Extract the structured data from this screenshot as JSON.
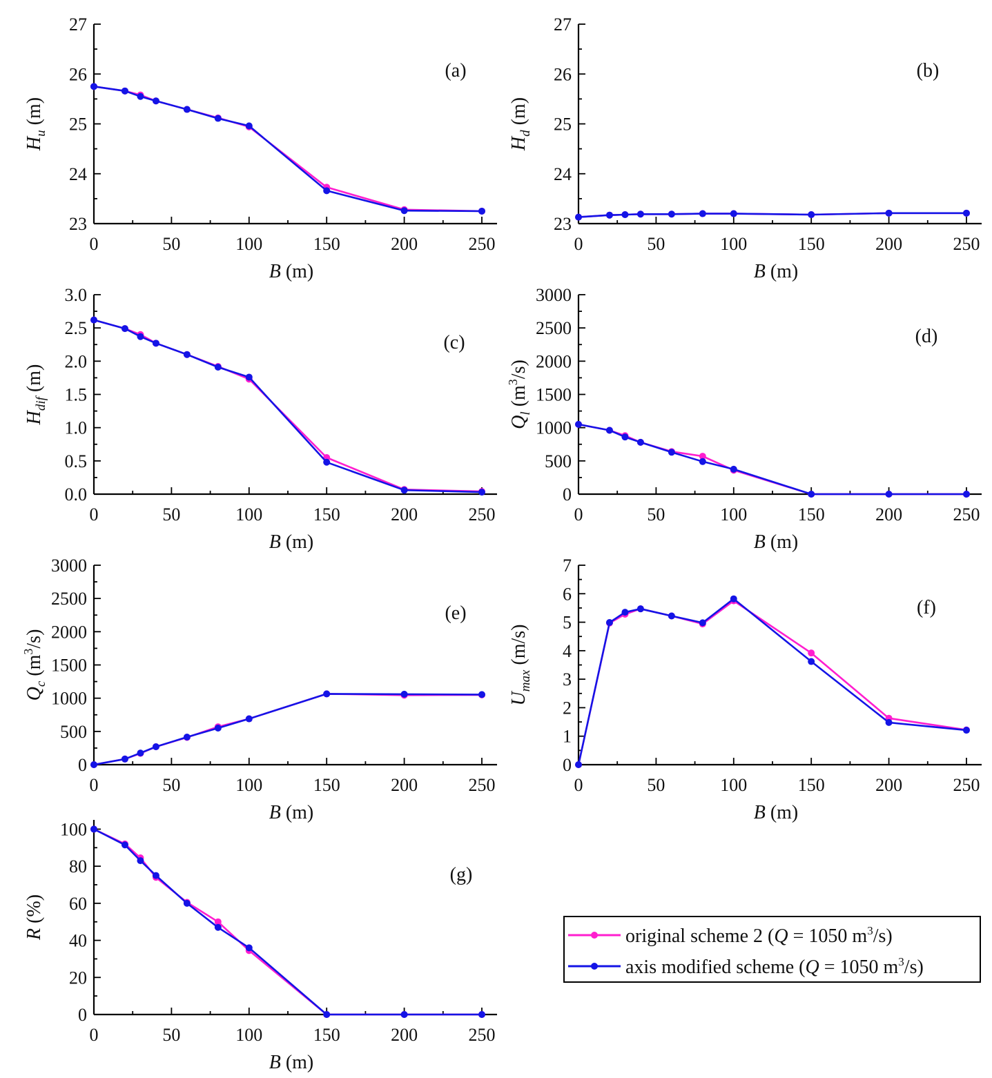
{
  "series_info": [
    {
      "name": "original scheme 2",
      "color": "#ff1ecf"
    },
    {
      "name": "axis modified scheme",
      "color": "#1414e6"
    }
  ],
  "legend": {
    "items": [
      {
        "label": "original scheme 2 (",
        "q": "Q",
        "eq": " = 1050 m",
        "sup": "3",
        "tail": "/s)",
        "color": "#ff1ecf"
      },
      {
        "label": "axis modified scheme (",
        "q": "Q",
        "eq": " = 1050 m",
        "sup": "3",
        "tail": "/s)",
        "color": "#1414e6"
      }
    ]
  },
  "chart_data": [
    {
      "id": "a",
      "type": "line",
      "tag": "(a)",
      "xlabel": "B (m)",
      "ylabel_main": "H",
      "ylabel_sub": "u",
      "ylabel_unit": " (m)",
      "xlim": [
        0,
        250
      ],
      "ylim": [
        23,
        27
      ],
      "xticks": [
        0,
        50,
        100,
        150,
        200,
        250
      ],
      "yticks": [
        23,
        24,
        25,
        26,
        27
      ],
      "yticklabels": [
        "23",
        "24",
        "25",
        "26",
        "27"
      ],
      "x": [
        0,
        20,
        30,
        40,
        60,
        80,
        100,
        150,
        200,
        250
      ],
      "series": [
        {
          "name": "original scheme 2",
          "values": [
            25.75,
            25.66,
            25.58,
            25.46,
            25.29,
            25.12,
            24.94,
            23.73,
            23.28,
            23.25
          ]
        },
        {
          "name": "axis modified scheme",
          "values": [
            25.75,
            25.66,
            25.55,
            25.46,
            25.29,
            25.11,
            24.96,
            23.66,
            23.26,
            23.25
          ]
        }
      ]
    },
    {
      "id": "b",
      "type": "line",
      "tag": "(b)",
      "xlabel": "B (m)",
      "ylabel_main": "H",
      "ylabel_sub": "d",
      "ylabel_unit": " (m)",
      "xlim": [
        0,
        250
      ],
      "ylim": [
        23,
        27
      ],
      "xticks": [
        0,
        50,
        100,
        150,
        200,
        250
      ],
      "yticks": [
        23,
        24,
        25,
        26,
        27
      ],
      "yticklabels": [
        "23",
        "24",
        "25",
        "26",
        "27"
      ],
      "x": [
        0,
        20,
        30,
        40,
        60,
        80,
        100,
        150,
        200,
        250
      ],
      "series": [
        {
          "name": "original scheme 2",
          "values": [
            23.13,
            23.17,
            23.18,
            23.19,
            23.19,
            23.2,
            23.2,
            23.18,
            23.21,
            23.21
          ]
        },
        {
          "name": "axis modified scheme",
          "values": [
            23.13,
            23.17,
            23.18,
            23.19,
            23.19,
            23.2,
            23.2,
            23.18,
            23.21,
            23.21
          ]
        }
      ]
    },
    {
      "id": "c",
      "type": "line",
      "tag": "(c)",
      "xlabel": "B (m)",
      "ylabel_main": "H",
      "ylabel_sub": "dif",
      "ylabel_unit": " (m)",
      "xlim": [
        0,
        250
      ],
      "ylim": [
        0,
        3
      ],
      "xticks": [
        0,
        50,
        100,
        150,
        200,
        250
      ],
      "yticks": [
        0,
        0.5,
        1,
        1.5,
        2,
        2.5,
        3
      ],
      "yticklabels": [
        "0.0",
        "0.5",
        "1.0",
        "1.5",
        "2.0",
        "2.5",
        "3.0"
      ],
      "x": [
        0,
        20,
        30,
        40,
        60,
        80,
        100,
        150,
        200,
        250
      ],
      "series": [
        {
          "name": "original scheme 2",
          "values": [
            2.62,
            2.49,
            2.4,
            2.27,
            2.1,
            1.92,
            1.73,
            0.55,
            0.07,
            0.04
          ]
        },
        {
          "name": "axis modified scheme",
          "values": [
            2.62,
            2.49,
            2.37,
            2.27,
            2.1,
            1.91,
            1.76,
            0.48,
            0.06,
            0.03
          ]
        }
      ]
    },
    {
      "id": "d",
      "type": "line",
      "tag": "(d)",
      "xlabel": "B (m)",
      "ylabel_main": "Q",
      "ylabel_sub": "l",
      "ylabel_unit": " (m",
      "ylabel_sup": "3",
      "ylabel_tail": "/s)",
      "xlim": [
        0,
        250
      ],
      "ylim": [
        0,
        3000
      ],
      "xticks": [
        0,
        50,
        100,
        150,
        200,
        250
      ],
      "yticks": [
        0,
        500,
        1000,
        1500,
        2000,
        2500,
        3000
      ],
      "yticklabels": [
        "0",
        "500",
        "1000",
        "1500",
        "2000",
        "2500",
        "3000"
      ],
      "x": [
        0,
        20,
        30,
        40,
        60,
        80,
        100,
        150,
        200,
        250
      ],
      "series": [
        {
          "name": "original scheme 2",
          "values": [
            1050,
            960,
            880,
            780,
            640,
            570,
            360,
            0,
            0,
            0
          ]
        },
        {
          "name": "axis modified scheme",
          "values": [
            1050,
            960,
            860,
            780,
            630,
            490,
            375,
            0,
            0,
            0
          ]
        }
      ]
    },
    {
      "id": "e",
      "type": "line",
      "tag": "(e)",
      "xlabel": "B (m)",
      "ylabel_main": "Q",
      "ylabel_sub": "c",
      "ylabel_unit": " (m",
      "ylabel_sup": "3",
      "ylabel_tail": "/s)",
      "xlim": [
        0,
        250
      ],
      "ylim": [
        0,
        3000
      ],
      "xticks": [
        0,
        50,
        100,
        150,
        200,
        250
      ],
      "yticks": [
        0,
        500,
        1000,
        1500,
        2000,
        2500,
        3000
      ],
      "yticklabels": [
        "0",
        "500",
        "1000",
        "1500",
        "2000",
        "2500",
        "3000"
      ],
      "x": [
        0,
        20,
        30,
        40,
        60,
        80,
        100,
        150,
        200,
        250
      ],
      "series": [
        {
          "name": "original scheme 2",
          "values": [
            0,
            85,
            170,
            270,
            410,
            570,
            690,
            1065,
            1045,
            1050
          ]
        },
        {
          "name": "axis modified scheme",
          "values": [
            0,
            85,
            175,
            270,
            415,
            550,
            690,
            1065,
            1060,
            1055
          ]
        }
      ]
    },
    {
      "id": "f",
      "type": "line",
      "tag": "(f)",
      "xlabel": "B (m)",
      "ylabel_main": "U",
      "ylabel_sub": "max",
      "ylabel_unit": " (m/s)",
      "xlim": [
        0,
        250
      ],
      "ylim": [
        0,
        7
      ],
      "xticks": [
        0,
        50,
        100,
        150,
        200,
        250
      ],
      "yticks": [
        0,
        1,
        2,
        3,
        4,
        5,
        6,
        7
      ],
      "yticklabels": [
        "0",
        "1",
        "2",
        "3",
        "4",
        "5",
        "6",
        "7"
      ],
      "x": [
        0,
        20,
        30,
        40,
        60,
        80,
        100,
        150,
        200,
        250
      ],
      "series": [
        {
          "name": "original scheme 2",
          "values": [
            0,
            4.97,
            5.28,
            5.47,
            5.22,
            4.94,
            5.75,
            3.92,
            1.63,
            1.22
          ]
        },
        {
          "name": "axis modified scheme",
          "values": [
            0,
            4.99,
            5.35,
            5.47,
            5.22,
            4.98,
            5.82,
            3.62,
            1.48,
            1.21
          ]
        }
      ]
    },
    {
      "id": "g",
      "type": "line",
      "tag": "(g)",
      "xlabel": "B (m)",
      "ylabel_main": "R",
      "ylabel_sub": "",
      "ylabel_unit": " (%)",
      "xlim": [
        0,
        250
      ],
      "ylim": [
        0,
        105
      ],
      "xticks": [
        0,
        50,
        100,
        150,
        200,
        250
      ],
      "yticks": [
        0,
        20,
        40,
        60,
        80,
        100
      ],
      "yticklabels": [
        "0",
        "20",
        "40",
        "60",
        "80",
        "100"
      ],
      "x": [
        0,
        20,
        30,
        40,
        60,
        80,
        100,
        150,
        200,
        250
      ],
      "series": [
        {
          "name": "original scheme 2",
          "values": [
            100,
            92,
            84.5,
            74,
            60.5,
            50,
            34.5,
            0,
            0,
            0
          ]
        },
        {
          "name": "axis modified scheme",
          "values": [
            100,
            91.5,
            83,
            75,
            60,
            47,
            36,
            0,
            0,
            0
          ]
        }
      ]
    }
  ]
}
